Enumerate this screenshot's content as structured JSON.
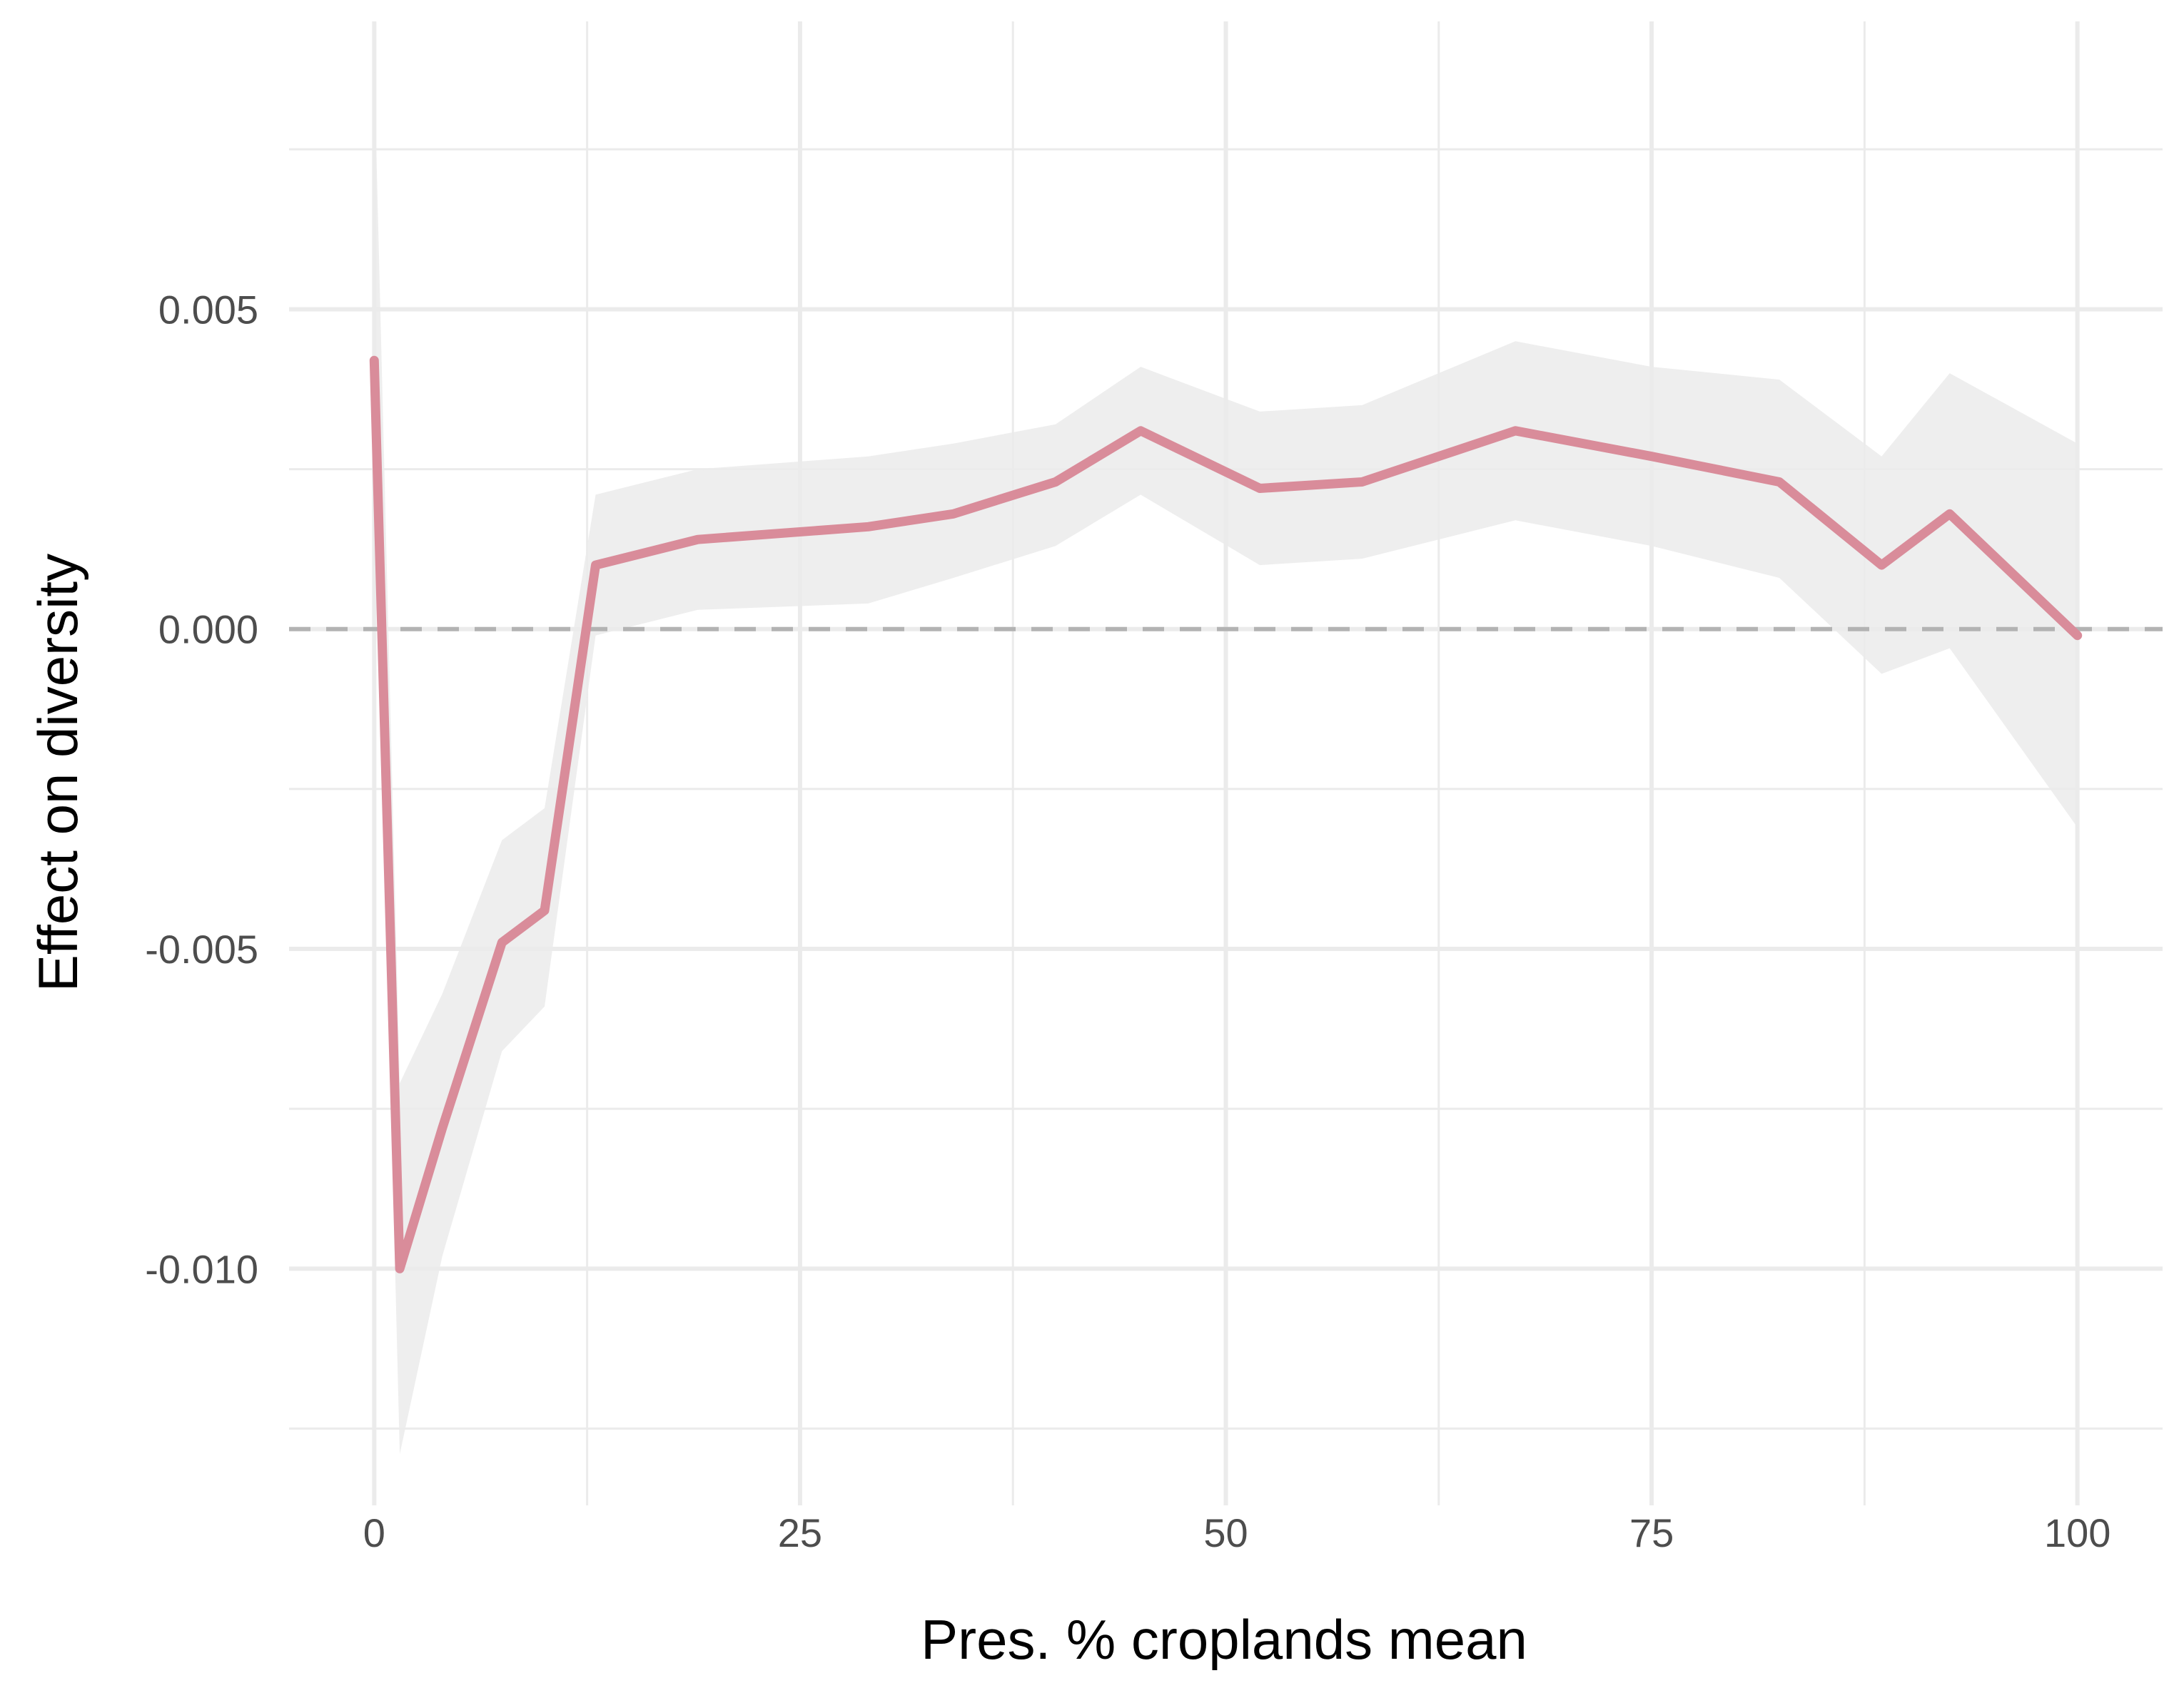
{
  "chart_data": {
    "type": "line",
    "title": "",
    "xlabel": "Pres. % croplands mean",
    "ylabel": "Effect on diversity",
    "xlim": [
      -5,
      105
    ],
    "ylim": [
      -0.0137,
      0.0095
    ],
    "x_ticks": [
      0,
      25,
      50,
      75,
      100
    ],
    "x_tick_labels": [
      "0",
      "25",
      "50",
      "75",
      "100"
    ],
    "y_ticks": [
      -0.01,
      -0.005,
      0.0,
      0.005
    ],
    "y_tick_labels": [
      "-0.010",
      "-0.005",
      "0.000",
      "0.005"
    ],
    "grid": true,
    "reference_line": {
      "y": 0,
      "style": "dashed",
      "color": "#b3b3b3"
    },
    "series": [
      {
        "color": "#d98c9a",
        "x": [
          0,
          1.5,
          4,
          7.5,
          10,
          13,
          19,
          29,
          34,
          40,
          45,
          52,
          58,
          67,
          75,
          82.5,
          88.5,
          92.5,
          100
        ],
        "y": [
          0.0042,
          -0.01,
          -0.0078,
          -0.0049,
          -0.0044,
          0.001,
          0.0014,
          0.0016,
          0.0018,
          0.0023,
          0.0031,
          0.0022,
          0.0023,
          0.0031,
          0.0027,
          0.0023,
          0.001,
          0.0018,
          -0.0001
        ],
        "lower": [
          0.003,
          -0.0129,
          -0.0098,
          -0.0066,
          -0.0059,
          -0.0001,
          0.0003,
          0.0004,
          0.0008,
          0.0013,
          0.0021,
          0.001,
          0.0011,
          0.0017,
          0.0013,
          0.0008,
          -0.0007,
          -0.0003,
          -0.0031
        ],
        "upper": [
          0.0088,
          -0.0071,
          -0.0057,
          -0.0033,
          -0.0028,
          0.0021,
          0.0025,
          0.0027,
          0.0029,
          0.0032,
          0.0041,
          0.0034,
          0.0035,
          0.0045,
          0.0041,
          0.0039,
          0.0027,
          0.004,
          0.0029
        ],
        "band_color": "#ebebeb"
      }
    ]
  }
}
